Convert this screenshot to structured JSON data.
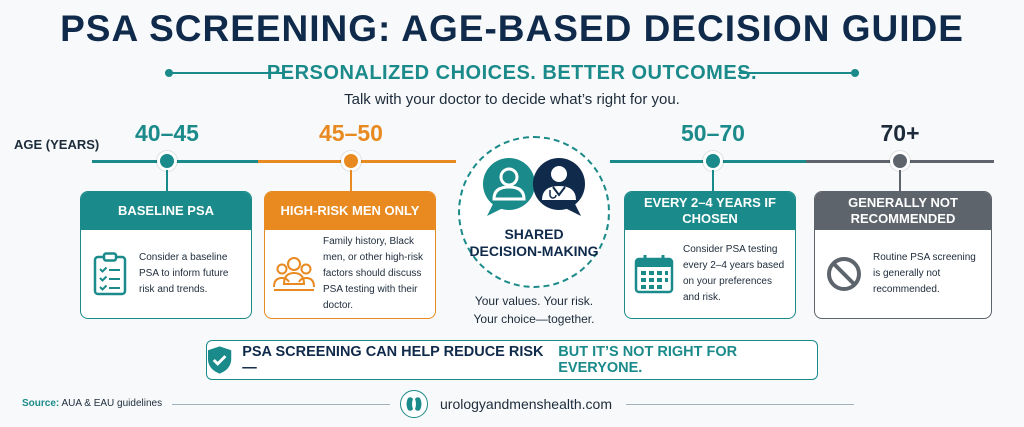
{
  "title": "PSA SCREENING: AGE-BASED DECISION GUIDE",
  "subtitle": "PERSONALIZED CHOICES. BETTER OUTCOMES.",
  "tagline": "Talk with your doctor to decide what’s right for you.",
  "age_label": "AGE (YEARS)",
  "colors": {
    "teal": "#1b8a8a",
    "orange": "#e88a1f",
    "gray": "#5d646b",
    "navy": "#0f2a4a"
  },
  "stages": [
    {
      "age": "40–45",
      "heading": "BASELINE PSA",
      "text": "Consider a baseline PSA to inform future risk and trends.",
      "icon": "clipboard-checklist-icon"
    },
    {
      "age": "45–50",
      "heading": "HIGH-RISK MEN ONLY",
      "text": "Family history, Black men, or other high-risk factors should discuss PSA testing with their doctor.",
      "icon": "people-group-icon"
    },
    {
      "age": "50–70",
      "heading": "EVERY 2–4 YEARS IF CHOSEN",
      "text": "Consider PSA testing every 2–4 years based on your preferences and risk.",
      "icon": "calendar-icon"
    },
    {
      "age": "70+",
      "heading": "GENERALLY NOT RECOMMENDED",
      "text": "Routine PSA screening is generally not recommended.",
      "icon": "prohibited-icon"
    }
  ],
  "center": {
    "title_line1": "SHARED",
    "title_line2": "DECISION-MAKING",
    "tag_line1": "Your values. Your risk.",
    "tag_line2": "Your choice—together."
  },
  "banner": {
    "part1": "PSA SCREENING CAN HELP REDUCE RISK —",
    "part2": "BUT IT’S NOT RIGHT FOR EVERYONE."
  },
  "footer": {
    "source_label": "Source:",
    "source_text": "AUA & EAU guidelines",
    "website": "urologyandmenshealth.com"
  }
}
